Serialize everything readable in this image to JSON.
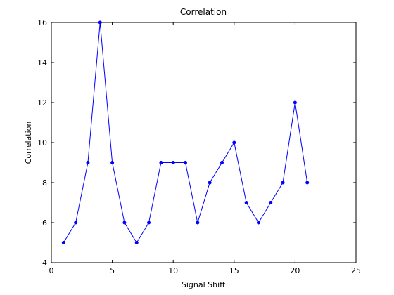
{
  "chart_data": {
    "type": "line",
    "title": "Correlation",
    "xlabel": "Signal Shift",
    "ylabel": "Correlation",
    "xlim": [
      0,
      25
    ],
    "ylim": [
      4,
      16
    ],
    "xticks": [
      0,
      5,
      10,
      15,
      20,
      25
    ],
    "yticks": [
      4,
      6,
      8,
      10,
      12,
      14,
      16
    ],
    "grid": false,
    "legend": "none",
    "series": [
      {
        "color": "#0000ff",
        "marker": "dot",
        "x": [
          1,
          2,
          3,
          4,
          5,
          6,
          7,
          8,
          9,
          10,
          11,
          12,
          13,
          14,
          15,
          16,
          17,
          18,
          19,
          20,
          21
        ],
        "y": [
          5,
          6,
          9,
          16,
          9,
          6,
          5,
          6,
          9,
          9,
          9,
          6,
          8,
          9,
          10,
          7,
          6,
          7,
          8,
          12,
          8
        ]
      }
    ]
  }
}
